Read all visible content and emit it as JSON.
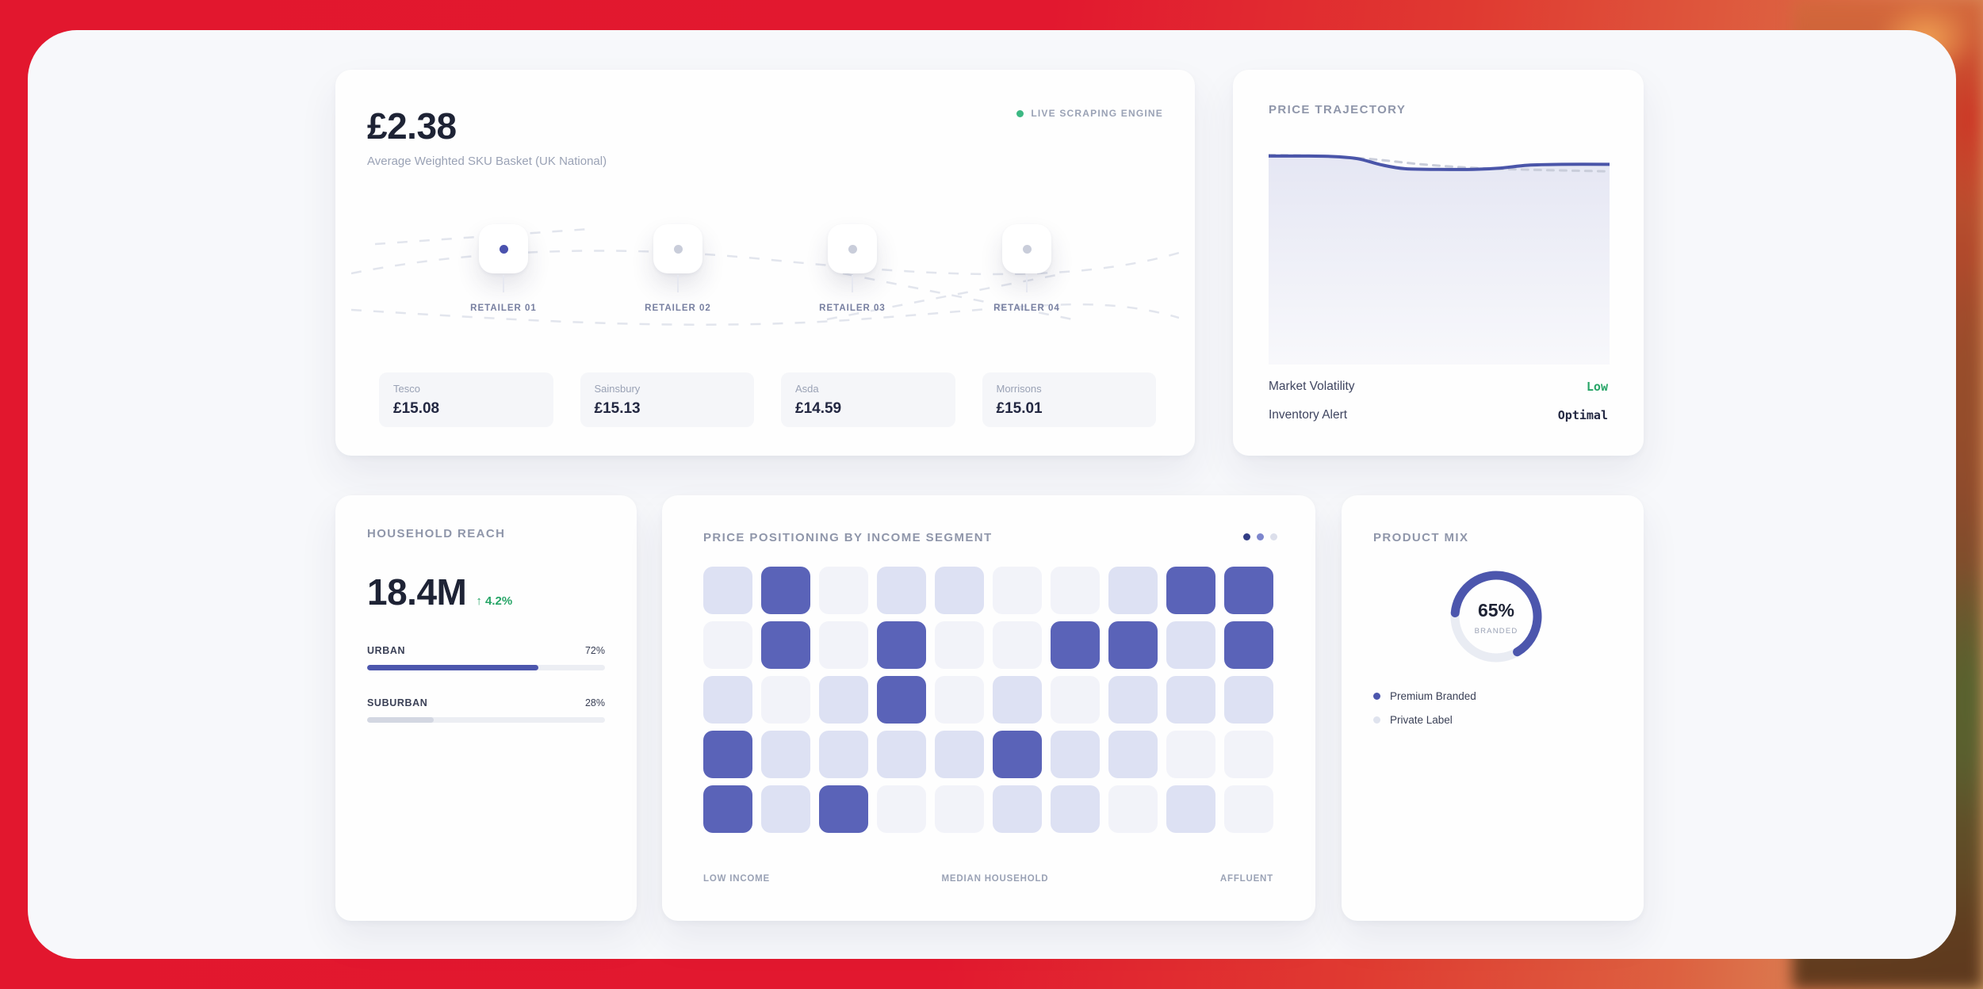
{
  "basket_card": {
    "badge": {
      "label": "LIVE SCRAPING ENGINE",
      "dot_color": "#3cb883"
    },
    "headline": {
      "value": "£2.38",
      "caption": "Average Weighted SKU Basket (UK National)"
    },
    "node_colors": {
      "active": "#4a52ae",
      "inactive": "#c9cdda"
    },
    "retailers": [
      {
        "node": "RETAILER 01",
        "name": "Tesco",
        "price": "£15.08",
        "active": true
      },
      {
        "node": "RETAILER 02",
        "name": "Sainsbury",
        "price": "£15.13",
        "active": false
      },
      {
        "node": "RETAILER 03",
        "name": "Asda",
        "price": "£14.59",
        "active": false
      },
      {
        "node": "RETAILER 04",
        "name": "Morrisons",
        "price": "£15.01",
        "active": false
      }
    ]
  },
  "trajectory_card": {
    "title": "PRICE TRAJECTORY",
    "chart_data": {
      "type": "area",
      "axes": "none",
      "series": [
        {
          "name": "actual price",
          "style": "solid",
          "color": "#4a55a9",
          "area_fill": true,
          "points_rel": [
            [
              0,
              0.05
            ],
            [
              0.08,
              0.05
            ],
            [
              0.18,
              0.052
            ],
            [
              0.26,
              0.062
            ],
            [
              0.33,
              0.09
            ],
            [
              0.4,
              0.108
            ],
            [
              0.5,
              0.111
            ],
            [
              0.6,
              0.111
            ],
            [
              0.68,
              0.105
            ],
            [
              0.76,
              0.092
            ],
            [
              0.86,
              0.088
            ],
            [
              1,
              0.088
            ]
          ]
        },
        {
          "name": "baseline",
          "style": "dashed",
          "color": "#c9cdda",
          "points_rel": [
            [
              0,
              0.045
            ],
            [
              0.15,
              0.05
            ],
            [
              0.3,
              0.064
            ],
            [
              0.45,
              0.088
            ],
            [
              0.6,
              0.104
            ],
            [
              0.75,
              0.112
            ],
            [
              0.9,
              0.117
            ],
            [
              1,
              0.12
            ]
          ]
        }
      ]
    },
    "stats": [
      {
        "label": "Market Volatility",
        "value": "Low",
        "tone": "green"
      },
      {
        "label": "Inventory Alert",
        "value": "Optimal",
        "tone": "dark"
      }
    ]
  },
  "household_card": {
    "title": "HOUSEHOLD REACH",
    "value": "18.4M",
    "delta": "↑ 4.2%",
    "chart_data": {
      "type": "bar",
      "categories": [
        "URBAN",
        "SUBURBAN"
      ],
      "values": [
        72,
        28
      ],
      "unit": "%"
    },
    "segments": [
      {
        "label": "URBAN",
        "pct": 72,
        "display": "72%",
        "fill": "#4c56ad"
      },
      {
        "label": "SUBURBAN",
        "pct": 28,
        "display": "28%",
        "fill": "#d3d7e2"
      }
    ]
  },
  "heatmap_card": {
    "title": "PRICE POSITIONING BY INCOME SEGMENT",
    "pagination_dot_colors": [
      "#323d85",
      "#7d86cd",
      "#dcdfeb"
    ],
    "chart_data": {
      "type": "heatmap",
      "rows": 5,
      "cols": 10,
      "matrix": [
        [
          1,
          2,
          0,
          1,
          1,
          0,
          0,
          1,
          2,
          2
        ],
        [
          0,
          2,
          0,
          2,
          0,
          0,
          2,
          2,
          1,
          2
        ],
        [
          1,
          0,
          1,
          2,
          0,
          1,
          0,
          1,
          1,
          1
        ],
        [
          2,
          1,
          1,
          1,
          1,
          2,
          1,
          1,
          0,
          0
        ],
        [
          2,
          1,
          2,
          0,
          0,
          1,
          1,
          0,
          1,
          0
        ]
      ],
      "intensity_colors": {
        "0": "#f2f3f9",
        "1": "#dde1f3",
        "2": "#5a63b8"
      },
      "x_labels": [
        "LOW INCOME",
        "MEDIAN HOUSEHOLD",
        "AFFLUENT"
      ]
    }
  },
  "productmix_card": {
    "title": "PRODUCT MIX",
    "chart_data": {
      "type": "pie",
      "center_value": "65%",
      "center_label": "BRANDED",
      "slices": [
        {
          "label": "Premium Branded",
          "pct": 65,
          "color": "#4c56ad"
        },
        {
          "label": "Private Label",
          "pct": 35,
          "color": "#e9ecf3"
        }
      ]
    },
    "legend": [
      {
        "label": "Premium Branded",
        "color": "#4c56ad"
      },
      {
        "label": "Private Label",
        "color": "#dfe3ee"
      }
    ]
  }
}
